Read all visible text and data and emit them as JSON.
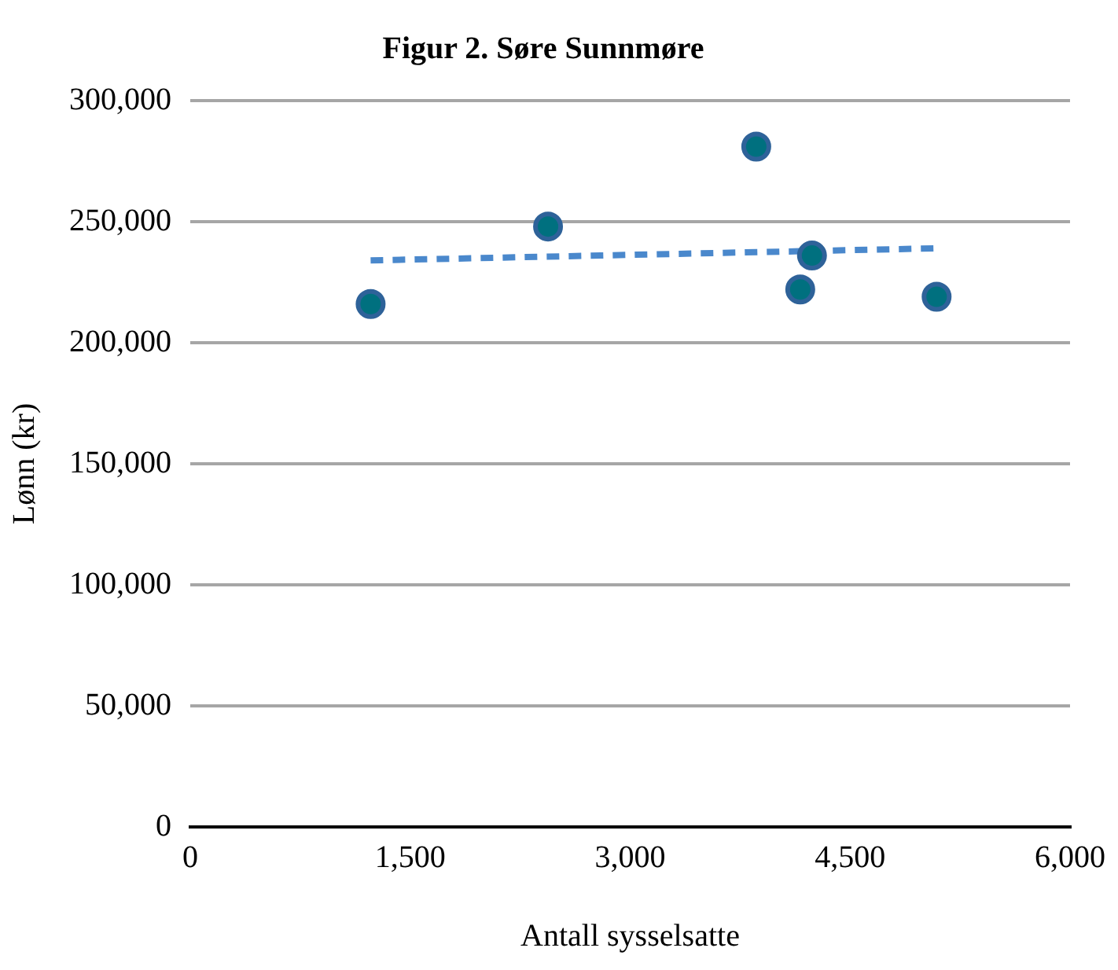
{
  "chart_data": {
    "type": "scatter",
    "title": "Figur 2. Søre Sunnmøre",
    "xlabel": "Antall sysselsatte",
    "ylabel": "Lønn (kr)",
    "xlim": [
      0,
      6000
    ],
    "xticks": [
      {
        "value": 0,
        "label": "0"
      },
      {
        "value": 1500,
        "label": "1,500"
      },
      {
        "value": 3000,
        "label": "3,000"
      },
      {
        "value": 4500,
        "label": "4,500"
      },
      {
        "value": 6000,
        "label": "6,000"
      }
    ],
    "ylim": [
      0,
      300000
    ],
    "yticks": [
      {
        "value": 0,
        "label": "0"
      },
      {
        "value": 50000,
        "label": "50,000"
      },
      {
        "value": 100000,
        "label": "100,000"
      },
      {
        "value": 150000,
        "label": "150,000"
      },
      {
        "value": 200000,
        "label": "200,000"
      },
      {
        "value": 250000,
        "label": "250,000"
      },
      {
        "value": 300000,
        "label": "300,000"
      }
    ],
    "grid": "y",
    "legend": false,
    "marker": "circle",
    "series": [
      {
        "color": "#2e6299",
        "x": [
          1230,
          2440,
          3860,
          4160,
          4240,
          5090
        ],
        "values": [
          216000,
          248000,
          281000,
          222000,
          236000,
          219000
        ]
      },
      {
        "type": "line",
        "color": "#4a88cc",
        "line_style": "dashed",
        "marker": "none",
        "x": [
          1230,
          5090
        ],
        "values": [
          234000,
          239000
        ]
      }
    ]
  }
}
